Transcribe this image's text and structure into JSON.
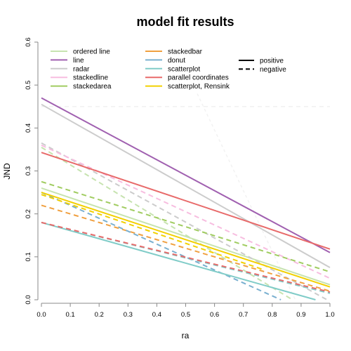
{
  "chart_data": {
    "type": "line",
    "title": "model fit results",
    "xlabel": "ra",
    "ylabel": "JND",
    "xlim": [
      0,
      1
    ],
    "ylim": [
      0,
      0.6
    ],
    "xticks": [
      0.0,
      0.1,
      0.2,
      0.3,
      0.4,
      0.5,
      0.6,
      0.7,
      0.8,
      0.9,
      1.0
    ],
    "yticks": [
      0.0,
      0.1,
      0.2,
      0.3,
      0.4,
      0.5,
      0.6
    ],
    "legend_position": "top-left",
    "linetype_legend": [
      {
        "label": "positive",
        "dash": "solid"
      },
      {
        "label": "negative",
        "dash": "dashed"
      }
    ],
    "series": [
      {
        "name": "ordered line",
        "color": "#c7e3b0",
        "positive": {
          "x": [
            0,
            1
          ],
          "y": [
            0.26,
            0.035
          ]
        },
        "negative": {
          "x": [
            0,
            0.87
          ],
          "y": [
            0.355,
            0.0
          ]
        }
      },
      {
        "name": "line",
        "color": "#a060b0",
        "positive": {
          "x": [
            0,
            1
          ],
          "y": [
            0.47,
            0.11
          ]
        }
      },
      {
        "name": "radar",
        "color": "#cccccc",
        "positive": {
          "x": [
            0,
            1
          ],
          "y": [
            0.455,
            0.075
          ]
        },
        "negative": {
          "x": [
            0,
            0.99
          ],
          "y": [
            0.365,
            0.0
          ]
        }
      },
      {
        "name": "stackedline",
        "color": "#f7bde0",
        "negative": {
          "x": [
            0,
            1
          ],
          "y": [
            0.36,
            0.05
          ]
        }
      },
      {
        "name": "stackedarea",
        "color": "#a0cc60",
        "negative": {
          "x": [
            0,
            1
          ],
          "y": [
            0.275,
            0.065
          ]
        }
      },
      {
        "name": "stackedbar",
        "color": "#f0a040",
        "negative": {
          "x": [
            0,
            1
          ],
          "y": [
            0.22,
            0.02
          ]
        }
      },
      {
        "name": "donut",
        "color": "#7ab0d0",
        "negative": {
          "x": [
            0,
            0.83
          ],
          "y": [
            0.25,
            0.0
          ]
        }
      },
      {
        "name": "scatterplot",
        "color": "#80ccc8",
        "positive": {
          "x": [
            0,
            0.95
          ],
          "y": [
            0.18,
            0.0
          ]
        },
        "negative": {
          "x": [
            0,
            1
          ],
          "y": [
            0.18,
            0.015
          ]
        }
      },
      {
        "name": "parallel coordinates",
        "color": "#e86a6a",
        "positive": {
          "x": [
            0,
            1
          ],
          "y": [
            0.343,
            0.118
          ]
        },
        "negative": {
          "x": [
            0,
            1
          ],
          "y": [
            0.18,
            0.018
          ]
        }
      },
      {
        "name": "scatterplot, Rensink",
        "color": "#f2d000",
        "positive": {
          "x": [
            0,
            1
          ],
          "y": [
            0.25,
            0.03
          ]
        },
        "negative": {
          "x": [
            0,
            0.77
          ],
          "y": [
            0.245,
            0.07
          ]
        }
      }
    ]
  }
}
